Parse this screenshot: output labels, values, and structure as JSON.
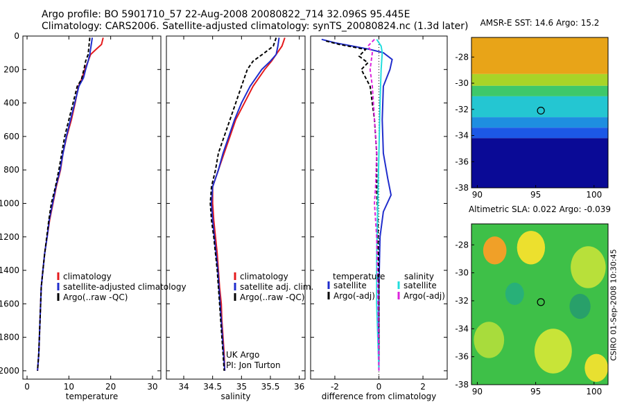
{
  "title": {
    "line1": "Argo profile: BO 5901710_57 22-Aug-2008 20080822_714 32.096S 95.445E",
    "line2": "Climatology: CARS2006. Satellite-adjusted climatology: synTS_20080824.nc (1.3d later)"
  },
  "credit": "CSIRO 01-Sep-2008 10:30:45",
  "colors": {
    "climatology": "#e41a1c",
    "satellite": "#1f2ccc",
    "argo": "#000000",
    "sat_salinity": "#22dddd",
    "argo_salinity": "#dd22dd"
  },
  "chart_data": [
    {
      "type": "line",
      "xlabel": "temperature",
      "ylabel": "",
      "xlim": [
        -1,
        32
      ],
      "ylim": [
        2050,
        0
      ],
      "y_reversed": true,
      "xticks": [
        "0",
        "10",
        "20",
        "30"
      ],
      "yticks": [
        "0",
        "200",
        "400",
        "600",
        "800",
        "1000",
        "1200",
        "1400",
        "1600",
        "1800",
        "2000"
      ],
      "legend": {
        "position": "bottom-right",
        "entries": [
          "climatology",
          "satellite-adjusted climatology",
          "Argo(..raw -QC)"
        ]
      },
      "series": [
        {
          "name": "climatology",
          "color": "#e41a1c",
          "dash": false,
          "points": [
            [
              18.2,
              10
            ],
            [
              17.8,
              50
            ],
            [
              16.5,
              80
            ],
            [
              15.2,
              110
            ],
            [
              14.6,
              150
            ],
            [
              13.8,
              200
            ],
            [
              13.2,
              250
            ],
            [
              12.3,
              300
            ],
            [
              11.5,
              400
            ],
            [
              10.6,
              500
            ],
            [
              9.5,
              600
            ],
            [
              8.6,
              700
            ],
            [
              8.0,
              800
            ],
            [
              7.0,
              900
            ],
            [
              6.2,
              1000
            ],
            [
              5.4,
              1100
            ],
            [
              4.8,
              1200
            ],
            [
              4.2,
              1300
            ],
            [
              3.8,
              1400
            ],
            [
              3.4,
              1500
            ],
            [
              3.1,
              1700
            ],
            [
              2.8,
              1900
            ],
            [
              2.5,
              2000
            ]
          ]
        },
        {
          "name": "satellite-adjusted climatology",
          "color": "#1f2ccc",
          "dash": false,
          "points": [
            [
              15.6,
              10
            ],
            [
              15.3,
              60
            ],
            [
              15.0,
              110
            ],
            [
              14.6,
              150
            ],
            [
              14.0,
              200
            ],
            [
              13.5,
              250
            ],
            [
              12.4,
              300
            ],
            [
              11.4,
              400
            ],
            [
              10.4,
              500
            ],
            [
              9.4,
              600
            ],
            [
              8.6,
              700
            ],
            [
              7.9,
              800
            ],
            [
              6.9,
              900
            ],
            [
              6.1,
              1000
            ],
            [
              5.3,
              1100
            ],
            [
              4.8,
              1200
            ],
            [
              4.2,
              1300
            ],
            [
              3.8,
              1400
            ],
            [
              3.4,
              1500
            ],
            [
              3.1,
              1700
            ],
            [
              2.8,
              1900
            ],
            [
              2.5,
              2000
            ]
          ]
        },
        {
          "name": "Argo(..raw -QC)",
          "color": "#000000",
          "dash": true,
          "points": [
            [
              15.0,
              10
            ],
            [
              14.8,
              60
            ],
            [
              14.6,
              110
            ],
            [
              14.0,
              150
            ],
            [
              13.6,
              200
            ],
            [
              13.0,
              260
            ],
            [
              12.0,
              300
            ],
            [
              11.0,
              400
            ],
            [
              10.0,
              500
            ],
            [
              9.0,
              600
            ],
            [
              8.3,
              700
            ],
            [
              7.6,
              800
            ],
            [
              6.8,
              900
            ],
            [
              5.8,
              1000
            ],
            [
              5.2,
              1100
            ],
            [
              4.7,
              1200
            ],
            [
              4.2,
              1300
            ],
            [
              3.8,
              1400
            ],
            [
              3.4,
              1500
            ],
            [
              3.1,
              1700
            ],
            [
              2.8,
              1900
            ],
            [
              2.5,
              2000
            ]
          ]
        }
      ]
    },
    {
      "type": "line",
      "xlabel": "salinity",
      "ylabel": "",
      "xlim": [
        33.7,
        36.1
      ],
      "ylim": [
        2050,
        0
      ],
      "y_reversed": true,
      "xticks": [
        "34",
        "34.5",
        "35",
        "35.5",
        "36"
      ],
      "legend": {
        "position": "bottom-right",
        "entries": [
          "climatology",
          "satellite adj. clim.",
          "Argo(..raw -QC)"
        ]
      },
      "annotation": [
        "UK Argo",
        "PI: Jon Turton"
      ],
      "series": [
        {
          "name": "climatology",
          "color": "#e41a1c",
          "dash": false,
          "points": [
            [
              35.75,
              10
            ],
            [
              35.7,
              60
            ],
            [
              35.6,
              110
            ],
            [
              35.52,
              150
            ],
            [
              35.4,
              200
            ],
            [
              35.2,
              300
            ],
            [
              35.05,
              400
            ],
            [
              34.9,
              500
            ],
            [
              34.8,
              600
            ],
            [
              34.7,
              700
            ],
            [
              34.6,
              800
            ],
            [
              34.5,
              900
            ],
            [
              34.5,
              1000
            ],
            [
              34.52,
              1100
            ],
            [
              34.55,
              1200
            ],
            [
              34.58,
              1300
            ],
            [
              34.6,
              1400
            ],
            [
              34.62,
              1500
            ],
            [
              34.65,
              1600
            ],
            [
              34.66,
              1700
            ],
            [
              34.68,
              1800
            ],
            [
              34.7,
              1900
            ],
            [
              34.71,
              2000
            ]
          ]
        },
        {
          "name": "satellite adj. clim.",
          "color": "#1f2ccc",
          "dash": false,
          "points": [
            [
              35.65,
              10
            ],
            [
              35.63,
              60
            ],
            [
              35.6,
              110
            ],
            [
              35.5,
              150
            ],
            [
              35.35,
              200
            ],
            [
              35.15,
              300
            ],
            [
              35.0,
              400
            ],
            [
              34.88,
              500
            ],
            [
              34.78,
              600
            ],
            [
              34.68,
              700
            ],
            [
              34.6,
              800
            ],
            [
              34.5,
              900
            ],
            [
              34.48,
              1000
            ],
            [
              34.5,
              1100
            ],
            [
              34.53,
              1200
            ],
            [
              34.56,
              1300
            ],
            [
              34.59,
              1400
            ],
            [
              34.61,
              1500
            ],
            [
              34.63,
              1600
            ],
            [
              34.65,
              1700
            ],
            [
              34.67,
              1800
            ],
            [
              34.69,
              1900
            ],
            [
              34.71,
              2000
            ]
          ]
        },
        {
          "name": "Argo(..raw -QC)",
          "color": "#000000",
          "dash": true,
          "points": [
            [
              35.6,
              10
            ],
            [
              35.55,
              60
            ],
            [
              35.4,
              100
            ],
            [
              35.2,
              150
            ],
            [
              35.1,
              200
            ],
            [
              35.0,
              300
            ],
            [
              34.9,
              400
            ],
            [
              34.8,
              500
            ],
            [
              34.7,
              600
            ],
            [
              34.6,
              700
            ],
            [
              34.55,
              800
            ],
            [
              34.48,
              900
            ],
            [
              34.46,
              1000
            ],
            [
              34.48,
              1100
            ],
            [
              34.52,
              1200
            ],
            [
              34.55,
              1300
            ],
            [
              34.58,
              1400
            ],
            [
              34.6,
              1500
            ],
            [
              34.62,
              1600
            ],
            [
              34.64,
              1700
            ],
            [
              34.66,
              1800
            ],
            [
              34.68,
              1900
            ],
            [
              34.7,
              2000
            ]
          ]
        }
      ]
    },
    {
      "type": "line",
      "xlabel": "difference from climatology",
      "ylabel": "",
      "xlim": [
        -3.1,
        3.1
      ],
      "ylim": [
        2050,
        0
      ],
      "y_reversed": true,
      "xticks": [
        "-2",
        "0",
        "2"
      ],
      "legend": {
        "position": "bottom",
        "temperature_title": "temperature",
        "salinity_title": "salinity",
        "entries": [
          "satellite",
          "Argo(-adj)",
          "satellite",
          "Argo(-adj)"
        ]
      },
      "series": [
        {
          "name": "temperature satellite",
          "color": "#1f2ccc",
          "dash": false,
          "points": [
            [
              -2.6,
              20
            ],
            [
              -2.0,
              40
            ],
            [
              -1.2,
              60
            ],
            [
              -0.4,
              80
            ],
            [
              0.2,
              100
            ],
            [
              0.6,
              140
            ],
            [
              0.5,
              200
            ],
            [
              0.2,
              300
            ],
            [
              0.15,
              500
            ],
            [
              0.2,
              700
            ],
            [
              0.4,
              850
            ],
            [
              0.55,
              950
            ],
            [
              0.2,
              1050
            ],
            [
              0.05,
              1200
            ],
            [
              0.0,
              1500
            ],
            [
              0.0,
              2000
            ]
          ]
        },
        {
          "name": "temperature Argo(-adj)",
          "color": "#000000",
          "dash": true,
          "points": [
            [
              -2.4,
              30
            ],
            [
              -1.8,
              50
            ],
            [
              -0.6,
              80
            ],
            [
              -0.9,
              120
            ],
            [
              -0.5,
              160
            ],
            [
              -0.8,
              200
            ],
            [
              -0.4,
              300
            ],
            [
              -0.2,
              500
            ],
            [
              -0.1,
              700
            ],
            [
              -0.1,
              900
            ],
            [
              -0.05,
              1100
            ],
            [
              0.0,
              1500
            ],
            [
              0.0,
              2000
            ]
          ]
        },
        {
          "name": "salinity satellite",
          "color": "#22dddd",
          "dash": false,
          "points": [
            [
              -0.1,
              20
            ],
            [
              0.1,
              60
            ],
            [
              0.15,
              100
            ],
            [
              0.1,
              200
            ],
            [
              0.05,
              400
            ],
            [
              0.0,
              700
            ],
            [
              -0.05,
              1000
            ],
            [
              -0.1,
              1300
            ],
            [
              -0.1,
              1600
            ],
            [
              0.0,
              2000
            ]
          ]
        },
        {
          "name": "salinity Argo(-adj)",
          "color": "#dd22dd",
          "dash": true,
          "points": [
            [
              -0.2,
              20
            ],
            [
              -0.5,
              60
            ],
            [
              -0.3,
              100
            ],
            [
              -0.4,
              200
            ],
            [
              -0.3,
              300
            ],
            [
              -0.2,
              500
            ],
            [
              -0.1,
              700
            ],
            [
              -0.15,
              900
            ],
            [
              -0.2,
              1000
            ],
            [
              -0.1,
              1200
            ],
            [
              -0.05,
              1500
            ],
            [
              0.0,
              2000
            ]
          ]
        }
      ]
    },
    {
      "type": "heatmap",
      "title": "AMSR-E SST: 14.6  Argo: 15.2",
      "xlim": [
        89.5,
        101.2
      ],
      "ylim": [
        -38,
        -26.5
      ],
      "xticks": [
        "90",
        "95",
        "100"
      ],
      "yticks": [
        "-28",
        "-30",
        "-32",
        "-34",
        "-36",
        "-38"
      ],
      "marker": {
        "lon": 95.445,
        "lat": -32.096
      },
      "bands": [
        {
          "lat_from": -26.5,
          "lat_to": -29.3,
          "color": "#e8a418"
        },
        {
          "lat_from": -29.3,
          "lat_to": -30.2,
          "color": "#a8d428"
        },
        {
          "lat_from": -30.2,
          "lat_to": -31.0,
          "color": "#3ec86a"
        },
        {
          "lat_from": -31.0,
          "lat_to": -32.6,
          "color": "#24c6d2"
        },
        {
          "lat_from": -32.6,
          "lat_to": -33.4,
          "color": "#1e8ee0"
        },
        {
          "lat_from": -33.4,
          "lat_to": -34.2,
          "color": "#1c58e6"
        },
        {
          "lat_from": -34.2,
          "lat_to": -38.0,
          "color": "#0a0a96"
        }
      ]
    },
    {
      "type": "heatmap",
      "title": "Altimetric SLA: 0.022  Argo: -0.039",
      "xlim": [
        89.5,
        101.2
      ],
      "ylim": [
        -38,
        -26.5
      ],
      "xticks": [
        "90",
        "95",
        "100"
      ],
      "yticks": [
        "-28",
        "-30",
        "-32",
        "-34",
        "-36",
        "-38"
      ],
      "marker": {
        "lon": 95.445,
        "lat": -32.096
      },
      "background": "#3ec048",
      "blobs": [
        {
          "lon": 91.5,
          "lat": -28.4,
          "r": 1.0,
          "color": "#f0a028"
        },
        {
          "lon": 94.6,
          "lat": -28.2,
          "r": 1.2,
          "color": "#ece02e"
        },
        {
          "lon": 99.5,
          "lat": -29.6,
          "r": 1.5,
          "color": "#b8e03a"
        },
        {
          "lon": 93.2,
          "lat": -31.5,
          "r": 0.8,
          "color": "#28b078"
        },
        {
          "lon": 98.8,
          "lat": -32.4,
          "r": 0.9,
          "color": "#28a06a"
        },
        {
          "lon": 91.0,
          "lat": -34.8,
          "r": 1.3,
          "color": "#a8dc3c"
        },
        {
          "lon": 96.5,
          "lat": -35.6,
          "r": 1.6,
          "color": "#c8e438"
        },
        {
          "lon": 100.2,
          "lat": -36.8,
          "r": 1.0,
          "color": "#e8e030"
        }
      ]
    }
  ]
}
